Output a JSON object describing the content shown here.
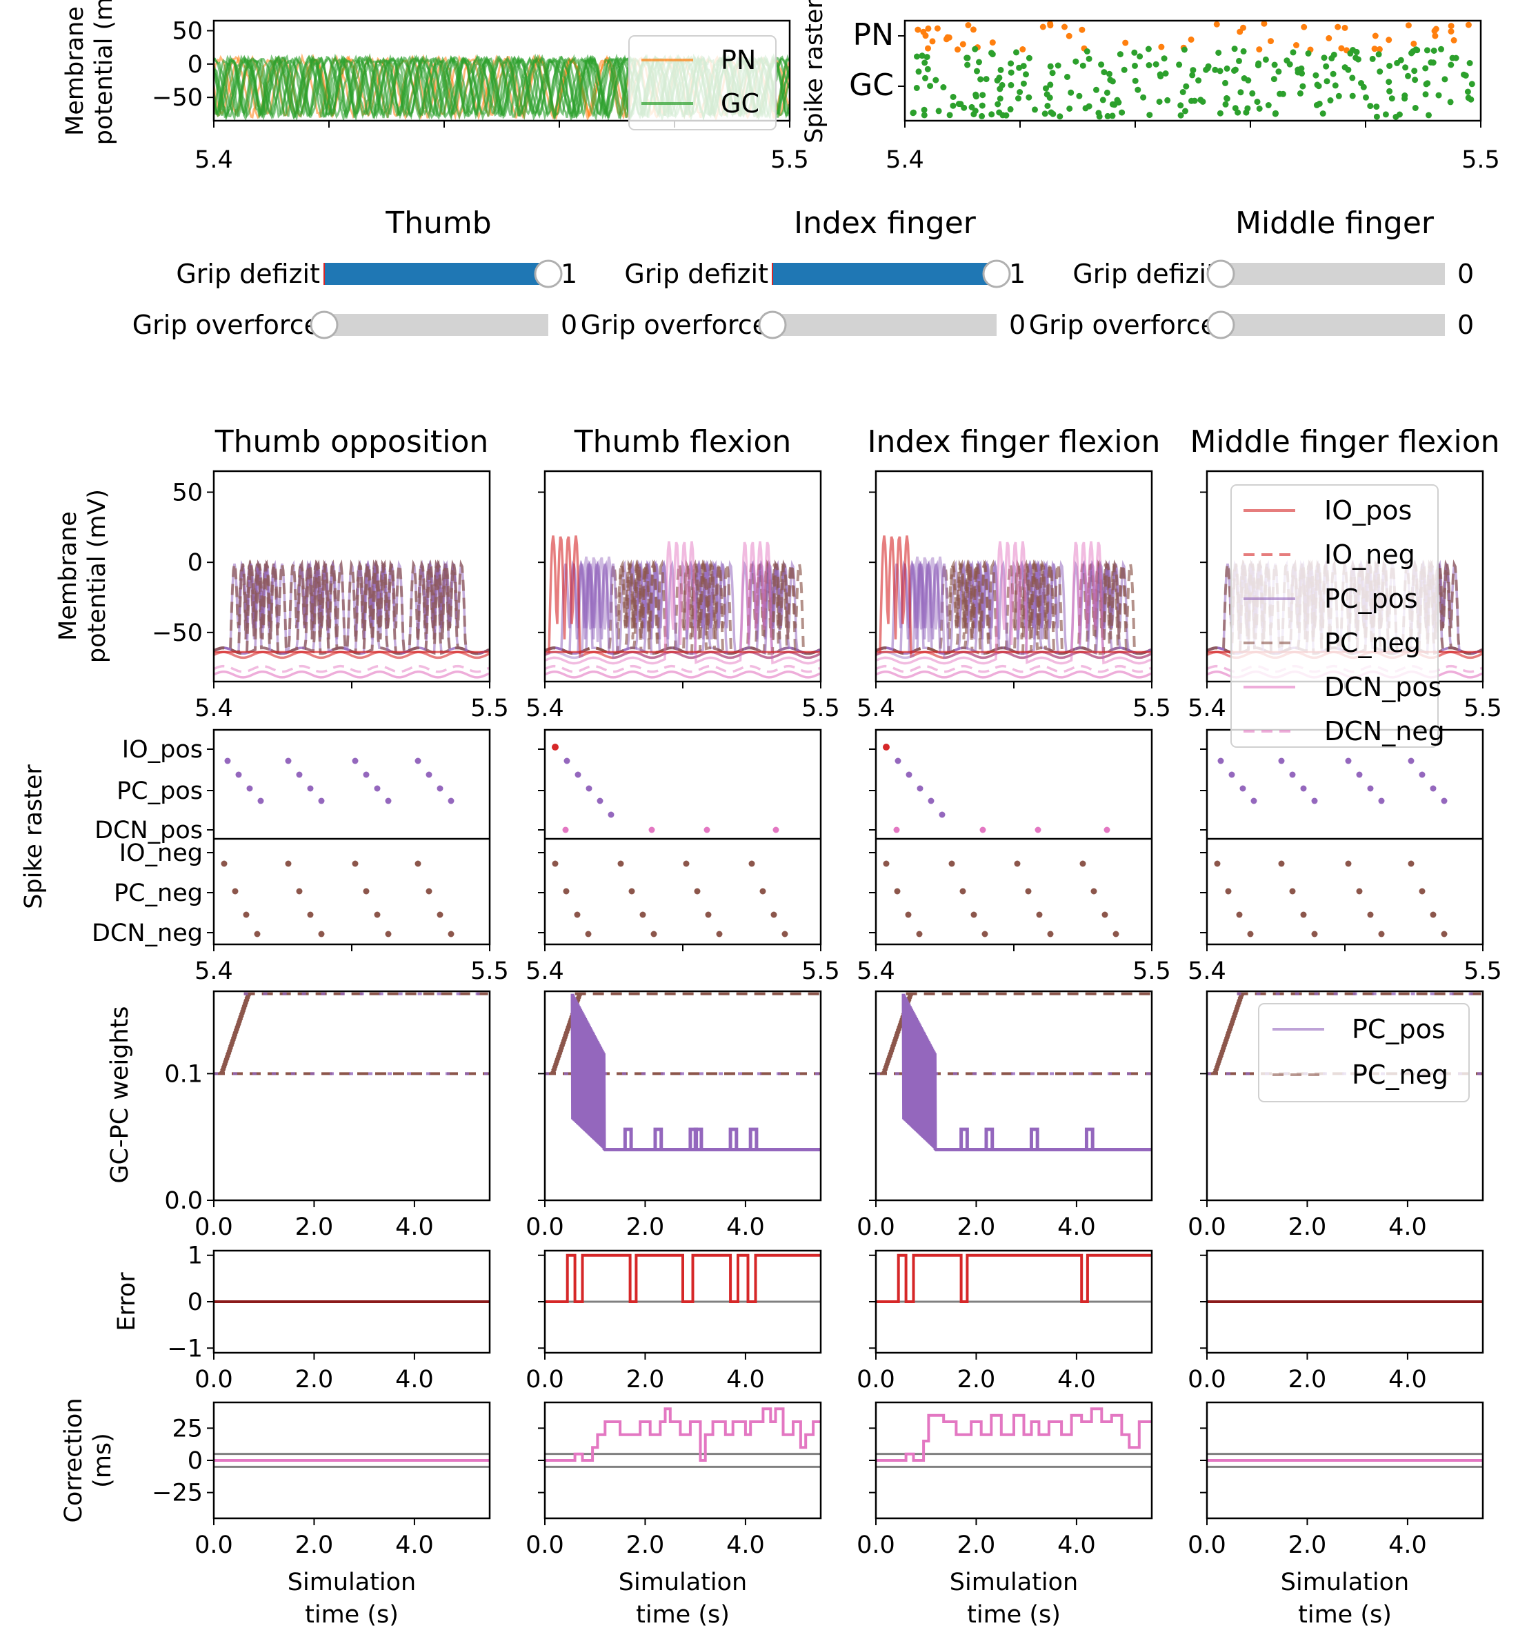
{
  "colors": {
    "PN": "#ff7f0e",
    "GC": "#2ca02c",
    "slider_fill": "#1f77b4",
    "slider_track": "#d3d3d3",
    "IO": "#d62728",
    "PC": "#9467bd",
    "DCN": "#e377c2",
    "NEG": "#8c564b",
    "ref": "#808080"
  },
  "top_panels": {
    "membrane": {
      "ylabel": "Membrane potential (mV)",
      "ylabel_lines": [
        "Membrane",
        "potential (m"
      ],
      "yticks": [
        50,
        0,
        -50
      ],
      "xticks": [
        "5.4",
        "5.5"
      ],
      "legend": [
        "PN",
        "GC"
      ]
    },
    "raster": {
      "ylabel": "Spike raster",
      "yticklabels": [
        "PN",
        "GC"
      ],
      "xticks": [
        "5.4",
        "5.5"
      ]
    }
  },
  "controls": [
    {
      "title": "Thumb",
      "sliders": [
        {
          "label": "Grip defizit",
          "value": 1,
          "value_text": "1"
        },
        {
          "label": "Grip overforce",
          "value": 0,
          "value_text": "0"
        }
      ]
    },
    {
      "title": "Index finger",
      "sliders": [
        {
          "label": "Grip defizit",
          "value": 1,
          "value_text": "1"
        },
        {
          "label": "Grip overforce",
          "value": 0,
          "value_text": "0"
        }
      ]
    },
    {
      "title": "Middle finger",
      "sliders": [
        {
          "label": "Grip defizit",
          "value": 0,
          "value_text": "0"
        },
        {
          "label": "Grip overforce",
          "value": 0,
          "value_text": "0"
        }
      ]
    }
  ],
  "columns": [
    {
      "title": "Thumb opposition"
    },
    {
      "title": "Thumb flexion"
    },
    {
      "title": "Index finger flexion"
    },
    {
      "title": "Middle finger flexion"
    }
  ],
  "row_labels": {
    "membrane": [
      "Membrane",
      "potential (mV)"
    ],
    "raster": "Spike raster",
    "weights": "GC-PC weights",
    "error": "Error",
    "correction": [
      "Correction",
      "(ms)"
    ],
    "xlabel": [
      "Simulation",
      "time (s)"
    ]
  },
  "membrane_legend": [
    "IO_pos",
    "IO_neg",
    "PC_pos",
    "PC_neg",
    "DCN_pos",
    "DCN_neg"
  ],
  "weights_legend": [
    "PC_pos",
    "PC_neg"
  ],
  "raster_labels": {
    "pos": [
      "IO_pos",
      "PC_pos",
      "DCN_pos"
    ],
    "neg": [
      "IO_neg",
      "PC_neg",
      "DCN_neg"
    ]
  },
  "chart_data": [
    {
      "type": "line",
      "panel": "membrane",
      "xlim": [
        5.4,
        5.5
      ],
      "ylim": [
        -85,
        65
      ],
      "yticks": [
        50,
        0,
        -50
      ],
      "xticks": [
        5.4,
        5.5
      ],
      "legend": "top-right (last column)",
      "series": [
        "IO_pos",
        "IO_neg",
        "PC_pos",
        "PC_neg",
        "DCN_pos",
        "DCN_neg"
      ]
    },
    {
      "type": "scatter",
      "panel": "spike raster",
      "xlim": [
        5.4,
        5.5
      ],
      "xticks": [
        5.4,
        5.5
      ],
      "groups": [
        "IO_pos",
        "PC_pos",
        "DCN_pos",
        "IO_neg",
        "PC_neg",
        "DCN_neg"
      ]
    },
    {
      "type": "line",
      "panel": "GC-PC weights",
      "xlim": [
        0,
        5.5
      ],
      "ylim": [
        0,
        0.165
      ],
      "yticks": [
        0.0,
        0.1
      ],
      "xticks": [
        0.0,
        2.0,
        4.0
      ],
      "series": [
        {
          "name": "PC_pos",
          "final": {
            "Thumb opposition": 0.163,
            "Thumb flexion": 0.04,
            "Index finger flexion": 0.04,
            "Middle finger flexion": 0.163
          }
        },
        {
          "name": "PC_neg",
          "final": {
            "Thumb opposition": 0.163,
            "Thumb flexion": 0.163,
            "Index finger flexion": 0.163,
            "Middle finger flexion": 0.163
          }
        }
      ]
    },
    {
      "type": "line",
      "panel": "Error",
      "xlim": [
        0,
        5.5
      ],
      "ylim": [
        -1.1,
        1.1
      ],
      "yticks": [
        1,
        0,
        -1
      ],
      "xticks": [
        0.0,
        2.0,
        4.0
      ],
      "series": [
        {
          "name": "Thumb opposition",
          "x": [
            0,
            5.5
          ],
          "y": [
            0,
            0
          ]
        },
        {
          "name": "Thumb flexion",
          "x": [
            0,
            0.45,
            0.45,
            0.6,
            0.6,
            0.75,
            0.75,
            1.7,
            1.7,
            1.82,
            1.82,
            2.75,
            2.75,
            2.95,
            2.95,
            3.7,
            3.7,
            3.85,
            3.85,
            4.05,
            4.05,
            4.2,
            4.2,
            5.5
          ],
          "y": [
            0,
            0,
            1,
            1,
            0,
            0,
            1,
            1,
            0,
            0,
            1,
            1,
            0,
            0,
            1,
            1,
            0,
            0,
            1,
            1,
            0,
            0,
            1,
            1
          ]
        },
        {
          "name": "Index finger flexion",
          "x": [
            0,
            0.45,
            0.45,
            0.6,
            0.6,
            0.75,
            0.75,
            1.7,
            1.7,
            1.82,
            1.82,
            4.1,
            4.1,
            4.22,
            4.22,
            5.5
          ],
          "y": [
            0,
            0,
            1,
            1,
            0,
            0,
            1,
            1,
            0,
            0,
            1,
            1,
            0,
            0,
            1,
            1
          ]
        },
        {
          "name": "Middle finger flexion",
          "x": [
            0,
            5.5
          ],
          "y": [
            0,
            0
          ]
        }
      ]
    },
    {
      "type": "line",
      "panel": "Correction",
      "xlim": [
        0,
        5.5
      ],
      "ylim": [
        -45,
        45
      ],
      "yticks": [
        25,
        0,
        -25
      ],
      "xticks": [
        0.0,
        2.0,
        4.0
      ],
      "series": [
        {
          "name": "Thumb opposition",
          "x": [
            0,
            5.5
          ],
          "y": [
            0,
            0
          ]
        },
        {
          "name": "Thumb flexion",
          "x": [
            0,
            0.6,
            0.6,
            0.75,
            0.75,
            0.95,
            0.95,
            1.05,
            1.05,
            1.2,
            1.2,
            1.5,
            1.5,
            1.9,
            1.9,
            2.1,
            2.1,
            2.3,
            2.3,
            2.4,
            2.4,
            2.5,
            2.5,
            2.7,
            2.7,
            2.9,
            2.9,
            3.1,
            3.1,
            3.2,
            3.2,
            3.35,
            3.35,
            3.6,
            3.6,
            3.75,
            3.75,
            4.0,
            4.0,
            4.1,
            4.1,
            4.35,
            4.35,
            4.5,
            4.5,
            4.6,
            4.6,
            4.75,
            4.75,
            4.95,
            4.95,
            5.1,
            5.1,
            5.2,
            5.2,
            5.35,
            5.35,
            5.5
          ],
          "y": [
            0,
            0,
            5,
            5,
            0,
            0,
            10,
            10,
            20,
            20,
            30,
            30,
            20,
            20,
            30,
            30,
            20,
            20,
            30,
            30,
            40,
            40,
            30,
            30,
            20,
            20,
            30,
            30,
            0,
            0,
            20,
            20,
            30,
            30,
            20,
            20,
            30,
            30,
            20,
            20,
            30,
            30,
            40,
            40,
            30,
            30,
            40,
            40,
            20,
            20,
            30,
            30,
            10,
            10,
            20,
            20,
            30,
            30
          ]
        },
        {
          "name": "Index finger flexion",
          "x": [
            0,
            0.6,
            0.6,
            0.75,
            0.75,
            0.95,
            0.95,
            1.05,
            1.05,
            1.35,
            1.35,
            1.6,
            1.6,
            1.9,
            1.9,
            2.1,
            2.1,
            2.3,
            2.3,
            2.5,
            2.5,
            2.75,
            2.75,
            2.95,
            2.95,
            3.1,
            3.1,
            3.25,
            3.25,
            3.45,
            3.45,
            3.7,
            3.7,
            3.9,
            3.9,
            4.1,
            4.1,
            4.3,
            4.3,
            4.5,
            4.5,
            4.7,
            4.7,
            4.9,
            4.9,
            5.05,
            5.05,
            5.25,
            5.25,
            5.5
          ],
          "y": [
            0,
            0,
            5,
            5,
            0,
            0,
            15,
            15,
            35,
            35,
            30,
            30,
            20,
            20,
            30,
            30,
            20,
            20,
            35,
            35,
            20,
            20,
            35,
            35,
            20,
            20,
            30,
            30,
            20,
            20,
            30,
            30,
            20,
            20,
            35,
            35,
            30,
            30,
            40,
            40,
            30,
            30,
            35,
            35,
            20,
            20,
            10,
            10,
            30,
            30
          ]
        },
        {
          "name": "Middle finger flexion",
          "x": [
            0,
            5.5
          ],
          "y": [
            0,
            0
          ]
        }
      ]
    }
  ]
}
